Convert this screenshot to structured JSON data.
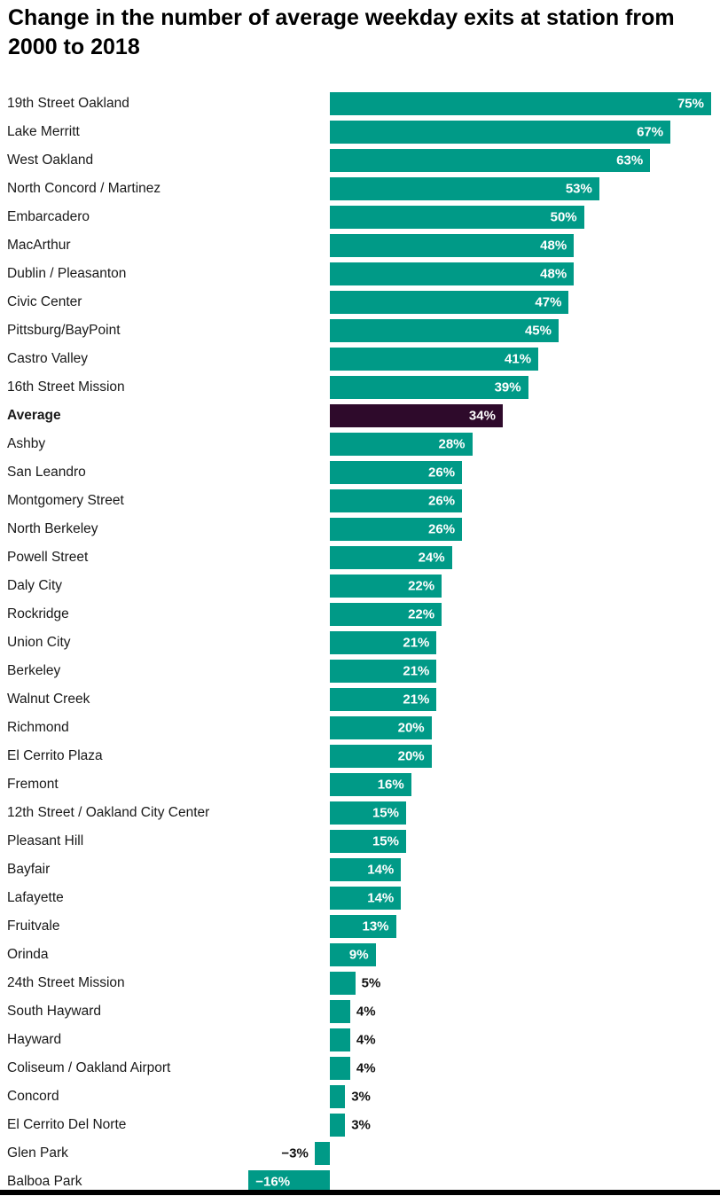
{
  "chart_data": {
    "type": "bar",
    "orientation": "horizontal",
    "title": "Change in the number of average weekday exits at station from 2000 to 2018",
    "xlabel": "",
    "ylabel": "",
    "unit": "%",
    "xlim": [
      -16,
      75
    ],
    "grid": false,
    "legend": false,
    "colors": {
      "bar": "#009a87",
      "highlight": "#2e0a2b",
      "label_inside": "#ffffff",
      "label_outside": "#101010"
    },
    "highlight_category": "Average",
    "bars": [
      {
        "station": "19th Street Oakland",
        "value": 75,
        "display": "75%"
      },
      {
        "station": "Lake Merritt",
        "value": 67,
        "display": "67%"
      },
      {
        "station": "West Oakland",
        "value": 63,
        "display": "63%"
      },
      {
        "station": "North Concord / Martinez",
        "value": 53,
        "display": "53%"
      },
      {
        "station": "Embarcadero",
        "value": 50,
        "display": "50%"
      },
      {
        "station": "MacArthur",
        "value": 48,
        "display": "48%"
      },
      {
        "station": "Dublin / Pleasanton",
        "value": 48,
        "display": "48%"
      },
      {
        "station": "Civic Center",
        "value": 47,
        "display": "47%"
      },
      {
        "station": "Pittsburg/BayPoint",
        "value": 45,
        "display": "45%"
      },
      {
        "station": "Castro Valley",
        "value": 41,
        "display": "41%"
      },
      {
        "station": "16th Street Mission",
        "value": 39,
        "display": "39%"
      },
      {
        "station": "Average",
        "value": 34,
        "display": "34%",
        "highlight": true
      },
      {
        "station": "Ashby",
        "value": 28,
        "display": "28%"
      },
      {
        "station": "San Leandro",
        "value": 26,
        "display": "26%"
      },
      {
        "station": "Montgomery Street",
        "value": 26,
        "display": "26%"
      },
      {
        "station": "North Berkeley",
        "value": 26,
        "display": "26%"
      },
      {
        "station": "Powell Street",
        "value": 24,
        "display": "24%"
      },
      {
        "station": "Daly City",
        "value": 22,
        "display": "22%"
      },
      {
        "station": "Rockridge",
        "value": 22,
        "display": "22%"
      },
      {
        "station": "Union City",
        "value": 21,
        "display": "21%"
      },
      {
        "station": "Berkeley",
        "value": 21,
        "display": "21%"
      },
      {
        "station": "Walnut Creek",
        "value": 21,
        "display": "21%"
      },
      {
        "station": "Richmond",
        "value": 20,
        "display": "20%"
      },
      {
        "station": "El Cerrito Plaza",
        "value": 20,
        "display": "20%"
      },
      {
        "station": "Fremont",
        "value": 16,
        "display": "16%"
      },
      {
        "station": "12th Street / Oakland City Center",
        "value": 15,
        "display": "15%"
      },
      {
        "station": "Pleasant Hill",
        "value": 15,
        "display": "15%"
      },
      {
        "station": "Bayfair",
        "value": 14,
        "display": "14%"
      },
      {
        "station": "Lafayette",
        "value": 14,
        "display": "14%"
      },
      {
        "station": "Fruitvale",
        "value": 13,
        "display": "13%"
      },
      {
        "station": "Orinda",
        "value": 9,
        "display": "9%"
      },
      {
        "station": "24th Street Mission",
        "value": 5,
        "display": "5%"
      },
      {
        "station": "South Hayward",
        "value": 4,
        "display": "4%"
      },
      {
        "station": "Hayward",
        "value": 4,
        "display": "4%"
      },
      {
        "station": "Coliseum / Oakland Airport",
        "value": 4,
        "display": "4%"
      },
      {
        "station": "Concord",
        "value": 3,
        "display": "3%"
      },
      {
        "station": "El Cerrito Del Norte",
        "value": 3,
        "display": "3%"
      },
      {
        "station": "Glen Park",
        "value": -3,
        "display": "−3%"
      },
      {
        "station": "Balboa Park",
        "value": -16,
        "display": "−16%"
      }
    ]
  }
}
